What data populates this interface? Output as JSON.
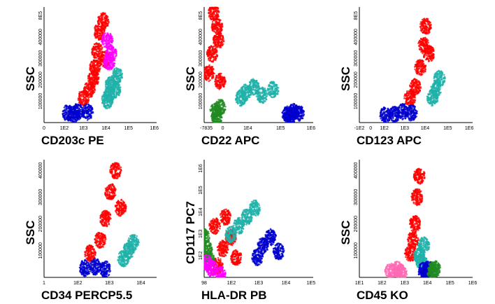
{
  "chart_data": [
    {
      "type": "scatter",
      "xlabel": "CD203c PE",
      "ylabel": "SSC",
      "x_ticks": [
        "0",
        "1E2",
        "1E3",
        "1E4",
        "1E5",
        "1E6"
      ],
      "y_ticks": [
        "100000",
        "200000",
        "300000",
        "400000",
        "8E5"
      ],
      "x_scale": "log",
      "grid": false,
      "series": [
        {
          "color": "#ff0000",
          "points": [
            [
              2.9,
              200000
            ],
            [
              3.0,
              260000
            ],
            [
              2.6,
              120000
            ],
            [
              3.1,
              330000
            ],
            [
              2.3,
              90000
            ],
            [
              3.3,
              370000
            ],
            [
              2.8,
              160000
            ],
            [
              3.4,
              230000
            ]
          ]
        },
        {
          "color": "#20b2aa",
          "points": [
            [
              3.7,
              140000
            ],
            [
              3.9,
              120000
            ],
            [
              3.5,
              80000
            ],
            [
              4.0,
              170000
            ],
            [
              3.6,
              100000
            ]
          ]
        },
        {
          "color": "#ff00ff",
          "points": [
            [
              3.6,
              220000
            ],
            [
              3.5,
              300000
            ],
            [
              3.7,
              250000
            ]
          ]
        },
        {
          "color": "#0000cd",
          "points": [
            [
              1.5,
              35000
            ],
            [
              2.0,
              40000
            ],
            [
              2.5,
              38000
            ],
            [
              1.8,
              30000
            ]
          ]
        }
      ]
    },
    {
      "type": "scatter",
      "xlabel": "CD22 APC",
      "ylabel": "SSC",
      "x_ticks": [
        "-7835",
        "0",
        "1E4",
        "1E5",
        "1E6"
      ],
      "y_ticks": [
        "100000",
        "200000",
        "300000",
        "400000",
        "8E5"
      ],
      "x_scale": "logicle",
      "grid": false,
      "series": [
        {
          "color": "#ff0000",
          "points": [
            [
              -0.3,
              250000
            ],
            [
              0,
              350000
            ],
            [
              -0.5,
              180000
            ],
            [
              0.2,
              150000
            ],
            [
              0.1,
              300000
            ],
            [
              -0.2,
              400000
            ]
          ]
        },
        {
          "color": "#20b2aa",
          "points": [
            [
              1.8,
              110000
            ],
            [
              2.3,
              130000
            ],
            [
              3.5,
              120000
            ],
            [
              1.5,
              90000
            ],
            [
              2.8,
              100000
            ]
          ]
        },
        {
          "color": "#228b22",
          "points": [
            [
              -0.1,
              40000
            ],
            [
              0,
              20000
            ],
            [
              0.2,
              55000
            ]
          ]
        },
        {
          "color": "#0000cd",
          "points": [
            [
              4.4,
              30000
            ],
            [
              4.8,
              40000
            ],
            [
              4.6,
              25000
            ],
            [
              5.1,
              35000
            ]
          ]
        }
      ]
    },
    {
      "type": "scatter",
      "xlabel": "CD123 APC",
      "ylabel": "SSC",
      "x_ticks": [
        "-1E2",
        "0",
        "1E2",
        "1E3",
        "1E4",
        "1E5",
        "1E6"
      ],
      "y_ticks": [
        "100000",
        "200000",
        "300000",
        "400000",
        "8E5"
      ],
      "x_scale": "logicle",
      "grid": false,
      "series": [
        {
          "color": "#ff0000",
          "points": [
            [
              3.0,
              200000
            ],
            [
              3.2,
              280000
            ],
            [
              2.7,
              130000
            ],
            [
              3.3,
              350000
            ],
            [
              2.4,
              90000
            ],
            [
              3.5,
              250000
            ]
          ]
        },
        {
          "color": "#20b2aa",
          "points": [
            [
              3.9,
              120000
            ],
            [
              4.1,
              160000
            ],
            [
              3.7,
              90000
            ]
          ]
        },
        {
          "color": "#0000cd",
          "points": [
            [
              1.5,
              30000
            ],
            [
              2.0,
              40000
            ],
            [
              2.5,
              35000
            ],
            [
              1.0,
              28000
            ]
          ]
        }
      ]
    },
    {
      "type": "scatter",
      "xlabel": "CD34 PERCP5.5",
      "ylabel": "SSC",
      "x_ticks": [
        "1",
        "1E2",
        "1E3",
        "1E4"
      ],
      "y_ticks": [
        "100000",
        "200000",
        "300000",
        "400000"
      ],
      "x_scale": "log",
      "grid": false,
      "series": [
        {
          "color": "#ff0000",
          "points": [
            [
              2.4,
              220000
            ],
            [
              2.6,
              320000
            ],
            [
              2.2,
              140000
            ],
            [
              2.8,
              400000
            ],
            [
              1.8,
              90000
            ],
            [
              3.0,
              260000
            ]
          ]
        },
        {
          "color": "#20b2aa",
          "points": [
            [
              3.3,
              100000
            ],
            [
              3.5,
              130000
            ],
            [
              3.1,
              70000
            ]
          ]
        },
        {
          "color": "#0000cd",
          "points": [
            [
              1.6,
              35000
            ],
            [
              2.0,
              40000
            ],
            [
              2.4,
              30000
            ]
          ]
        }
      ]
    },
    {
      "type": "scatter",
      "xlabel": "HLA-DR PB",
      "ylabel": "CD117 PC7",
      "x_ticks": [
        "98",
        "1E2",
        "1E3",
        "1E4",
        "1E5"
      ],
      "y_ticks": [
        "1E2",
        "1E3",
        "1E4",
        "1E5",
        "1E6"
      ],
      "x_scale": "log",
      "y_scale": "log",
      "grid": false,
      "series": [
        {
          "color": "#ff0000",
          "points": [
            [
              2.6,
              2.9
            ],
            [
              2.9,
              3.3
            ],
            [
              2.3,
              3.7
            ],
            [
              3.1,
              2.6
            ],
            [
              2.7,
              4.0
            ],
            [
              2.4,
              2.3
            ]
          ]
        },
        {
          "color": "#20b2aa",
          "points": [
            [
              3.5,
              4.0
            ],
            [
              3.2,
              3.7
            ],
            [
              3.8,
              4.3
            ],
            [
              2.9,
              3.4
            ]
          ]
        },
        {
          "color": "#0000cd",
          "points": [
            [
              4.1,
              3.0
            ],
            [
              4.4,
              3.3
            ],
            [
              4.7,
              2.8
            ],
            [
              3.9,
              2.6
            ]
          ]
        },
        {
          "color": "#228b22",
          "points": [
            [
              2.0,
              2.9
            ],
            [
              1.9,
              3.3
            ],
            [
              2.1,
              2.5
            ]
          ]
        },
        {
          "color": "#ff00ff",
          "points": [
            [
              2.2,
              2.2
            ],
            [
              2.5,
              2.0
            ],
            [
              2.0,
              2.4
            ]
          ]
        }
      ]
    },
    {
      "type": "scatter",
      "xlabel": "CD45 KO",
      "ylabel": "SSC",
      "x_ticks": [
        "1E1",
        "1E2",
        "1E3",
        "1E4",
        "1E5",
        "1E6"
      ],
      "y_ticks": [
        "100000",
        "200000",
        "300000",
        "400000"
      ],
      "x_scale": "log",
      "grid": false,
      "series": [
        {
          "color": "#ff0000",
          "points": [
            [
              3.4,
              200000
            ],
            [
              3.5,
              300000
            ],
            [
              3.3,
              140000
            ],
            [
              3.6,
              380000
            ],
            [
              3.2,
              90000
            ]
          ]
        },
        {
          "color": "#20b2aa",
          "points": [
            [
              3.6,
              80000
            ],
            [
              3.8,
              120000
            ],
            [
              3.7,
              60000
            ]
          ]
        },
        {
          "color": "#0000cd",
          "points": [
            [
              3.8,
              25000
            ],
            [
              4.0,
              30000
            ],
            [
              3.9,
              20000
            ]
          ]
        },
        {
          "color": "#ff69b4",
          "points": [
            [
              2.3,
              22000
            ],
            [
              2.6,
              30000
            ],
            [
              2.8,
              18000
            ]
          ]
        },
        {
          "color": "#228b22",
          "points": [
            [
              4.2,
              25000
            ],
            [
              4.3,
              32000
            ]
          ]
        }
      ]
    }
  ]
}
